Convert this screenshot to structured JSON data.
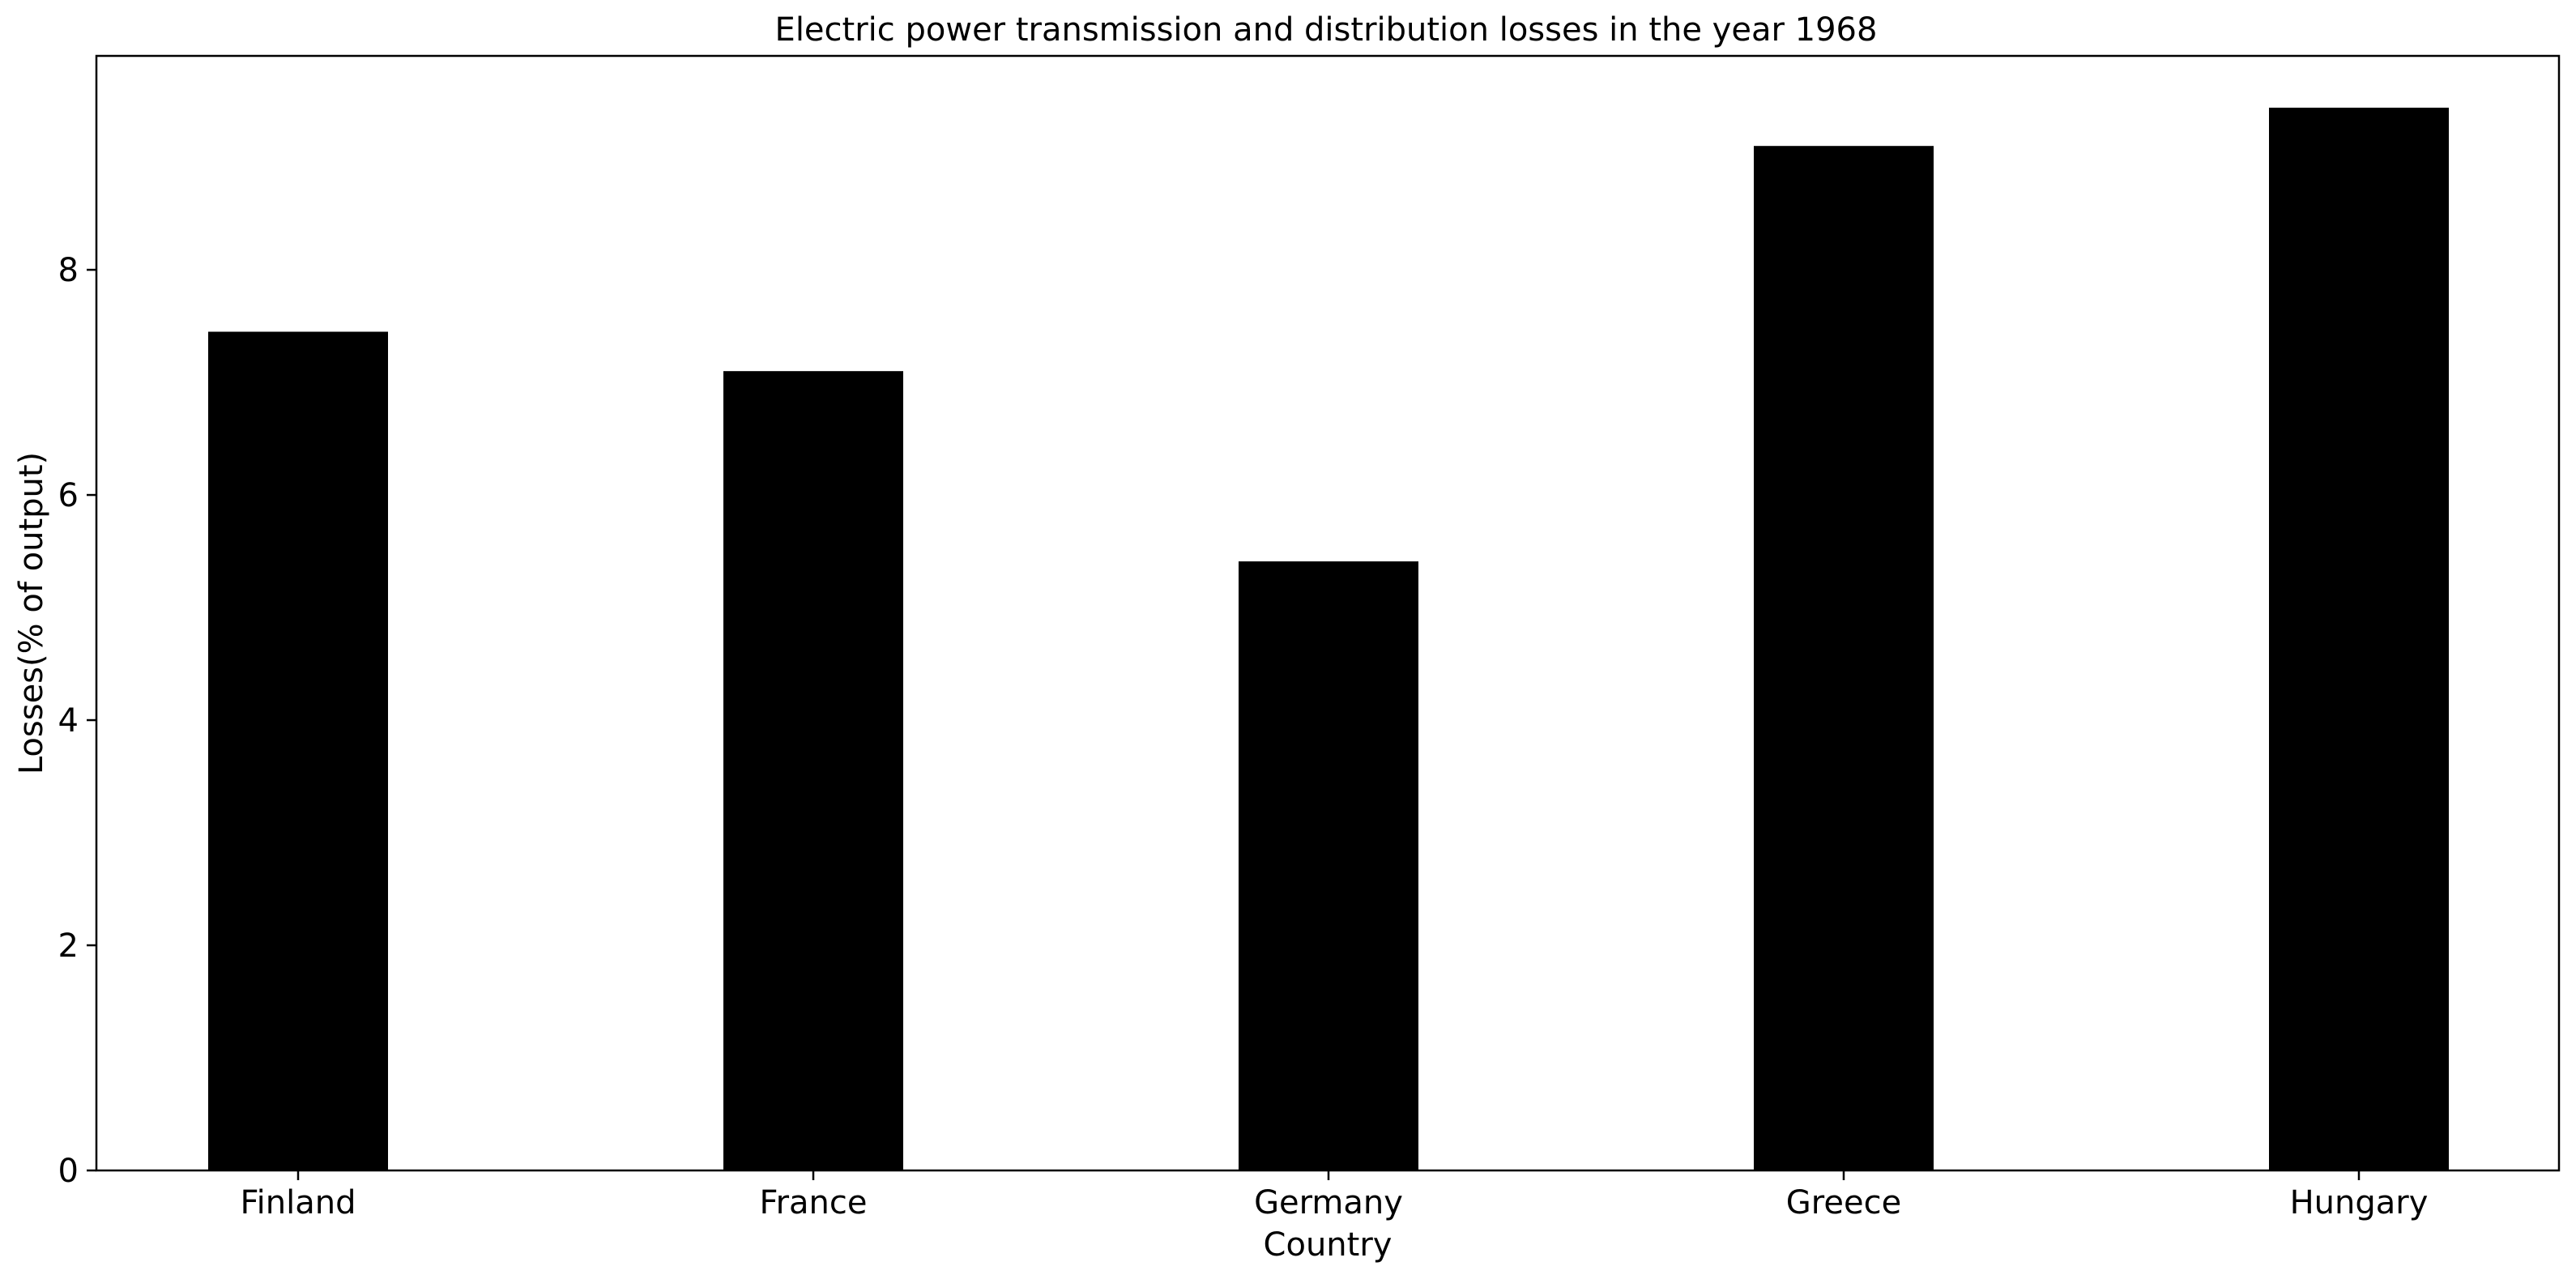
{
  "chart_data": {
    "type": "bar",
    "title": "Electric power transmission and distribution losses in the year 1968",
    "xlabel": "Country",
    "ylabel": "Losses(% of output)",
    "categories": [
      "Finland",
      "France",
      "Germany",
      "Greece",
      "Hungary"
    ],
    "values": [
      7.45,
      7.1,
      5.41,
      9.1,
      9.44
    ],
    "ylim": [
      0,
      9.9
    ],
    "yticks": [
      0,
      2,
      4,
      6,
      8
    ],
    "bar_color": "#000000",
    "grid": false,
    "legend": "none"
  }
}
